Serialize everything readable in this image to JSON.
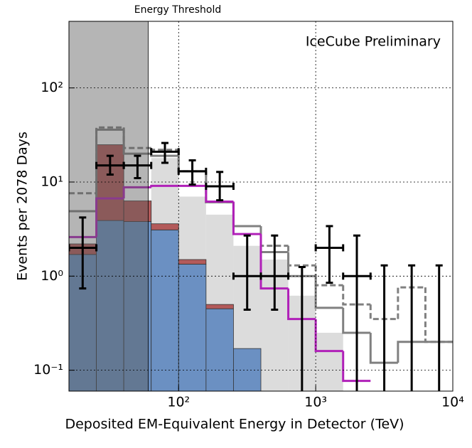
{
  "chart_data": {
    "type": "histogram",
    "xlabel": "Deposited EM-Equivalent Energy in Detector (TeV)",
    "ylabel": "Events per 2078 Days",
    "annotation": "IceCube Preliminary",
    "annotation_color": "#e8141e",
    "threshold": 60,
    "threshold_label": "Energy Threshold",
    "log_x": true,
    "log_y": true,
    "grid": true,
    "xlim": [
      15.85,
      10000
    ],
    "ylim": [
      0.06,
      510
    ],
    "xticks": [
      {
        "value": 100,
        "label": "10²"
      },
      {
        "value": 1000,
        "label": "10³"
      },
      {
        "value": 10000,
        "label": "10⁴"
      }
    ],
    "yticks": [
      {
        "value": 0.1,
        "label": "10⁻¹"
      },
      {
        "value": 1,
        "label": "10⁰"
      },
      {
        "value": 10,
        "label": "10¹"
      },
      {
        "value": 100,
        "label": "10²"
      }
    ],
    "bins": [
      15.85,
      25.12,
      39.81,
      63.1,
      100,
      158.5,
      251.2,
      398.1,
      631,
      1000,
      1585,
      2512,
      3981,
      6310,
      10000
    ],
    "series": [
      {
        "style": "fill",
        "color": "#dcdcdc",
        "values": [
          null,
          null,
          null,
          18,
          7,
          4.5,
          2.1,
          1.5,
          0.62,
          0.25,
          null,
          null,
          null,
          null
        ]
      },
      {
        "style": "stack",
        "color": "#6b90c2",
        "values": [
          1.7,
          3.9,
          3.8,
          3.1,
          1.34,
          0.45,
          0.17,
          null,
          null,
          null,
          null,
          null,
          null,
          null
        ]
      },
      {
        "style": "stack",
        "color": "#b35a5a",
        "values": [
          0.5,
          21,
          2.5,
          0.5,
          0.16,
          0.05,
          null,
          null,
          null,
          null,
          null,
          null,
          null,
          null
        ]
      },
      {
        "style": "line",
        "color": "#808080",
        "values": [
          4.9,
          36,
          20,
          19,
          13,
          6.1,
          3.4,
          1.8,
          1.0,
          0.46,
          0.25,
          0.12,
          0.2,
          0.2
        ]
      },
      {
        "style": "dashed",
        "color": "#808080",
        "values": [
          7.6,
          38,
          23,
          22,
          13,
          6.1,
          3.4,
          2.1,
          1.3,
          0.8,
          0.5,
          0.35,
          0.76,
          0.2
        ]
      },
      {
        "style": "line",
        "color": "#b020b8",
        "values": [
          2.6,
          6.7,
          8.8,
          9.1,
          9.1,
          6.2,
          2.8,
          0.74,
          0.35,
          0.16,
          0.077,
          null,
          null,
          null
        ]
      }
    ],
    "points": {
      "color": "#000000",
      "values": [
        2,
        15,
        15,
        21,
        13,
        9,
        1,
        1,
        null,
        2,
        1,
        null,
        null,
        null
      ],
      "lower": [
        0.74,
        12,
        11,
        16,
        9.4,
        6.4,
        0.44,
        0.44,
        0,
        0.85,
        0,
        0,
        0,
        0
      ],
      "upper": [
        4.2,
        19,
        19,
        26,
        17,
        12.8,
        2.7,
        2.7,
        1.25,
        3.4,
        2.7,
        1.3,
        1.3,
        1.3
      ]
    }
  }
}
